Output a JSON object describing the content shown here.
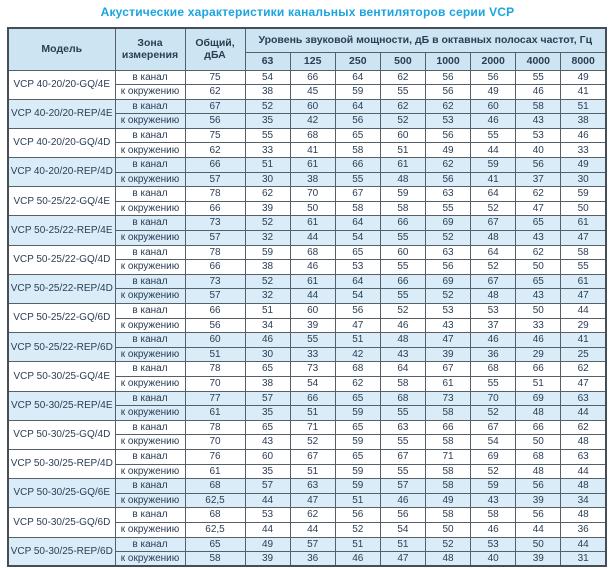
{
  "title": "Акустические характеристики канальных вентиляторов  серии VCP",
  "colors": {
    "title_text": "#1ba4e0",
    "header_bg": "#cde4f2",
    "shaded_row_bg": "#d9ecf7",
    "cell_text": "#2c3e54",
    "border": "#566069"
  },
  "table": {
    "headers": {
      "model": "Модель",
      "zone": "Зона измерения",
      "total": "Общий, дБА",
      "octave": "Уровень звуковой мощности, дБ в октавных полосах частот, Гц",
      "frequencies": [
        "63",
        "125",
        "250",
        "500",
        "1000",
        "2000",
        "4000",
        "8000"
      ]
    },
    "zone_labels": [
      "в канал",
      "к окружению"
    ],
    "rows": [
      {
        "model": "VCP 40-20/20-GQ/4E",
        "shaded": false,
        "in_channel": [
          75,
          54,
          66,
          64,
          62,
          56,
          56,
          55,
          49
        ],
        "to_ambient": [
          62,
          38,
          45,
          59,
          55,
          56,
          49,
          46,
          41
        ]
      },
      {
        "model": "VCP 40-20/20-REP/4E",
        "shaded": true,
        "in_channel": [
          67,
          52,
          60,
          64,
          62,
          62,
          60,
          58,
          51
        ],
        "to_ambient": [
          56,
          35,
          42,
          56,
          52,
          53,
          46,
          43,
          38
        ]
      },
      {
        "model": "VCP 40-20/20-GQ/4D",
        "shaded": false,
        "in_channel": [
          75,
          55,
          68,
          65,
          60,
          56,
          55,
          53,
          46
        ],
        "to_ambient": [
          62,
          33,
          41,
          58,
          51,
          49,
          44,
          40,
          33
        ]
      },
      {
        "model": "VCP 40-20/20-REP/4D",
        "shaded": true,
        "in_channel": [
          66,
          51,
          61,
          66,
          61,
          62,
          59,
          56,
          49
        ],
        "to_ambient": [
          57,
          30,
          38,
          55,
          48,
          56,
          41,
          37,
          30
        ]
      },
      {
        "model": "VCP 50-25/22-GQ/4E",
        "shaded": false,
        "in_channel": [
          78,
          62,
          70,
          67,
          59,
          63,
          64,
          62,
          59
        ],
        "to_ambient": [
          66,
          39,
          50,
          58,
          58,
          55,
          52,
          47,
          50
        ]
      },
      {
        "model": "VCP 50-25/22-REP/4E",
        "shaded": true,
        "in_channel": [
          73,
          52,
          61,
          64,
          66,
          69,
          67,
          65,
          61
        ],
        "to_ambient": [
          57,
          32,
          44,
          54,
          55,
          52,
          48,
          43,
          47
        ]
      },
      {
        "model": "VCP 50-25/22-GQ/4D",
        "shaded": false,
        "in_channel": [
          78,
          59,
          68,
          65,
          60,
          63,
          64,
          62,
          58
        ],
        "to_ambient": [
          66,
          38,
          46,
          53,
          55,
          56,
          52,
          50,
          55
        ]
      },
      {
        "model": "VCP 50-25/22-REP/4D",
        "shaded": true,
        "in_channel": [
          73,
          52,
          61,
          64,
          66,
          69,
          67,
          65,
          61
        ],
        "to_ambient": [
          57,
          32,
          44,
          54,
          55,
          52,
          48,
          43,
          47
        ]
      },
      {
        "model": "VCP 50-25/22-GQ/6D",
        "shaded": false,
        "in_channel": [
          66,
          51,
          60,
          56,
          52,
          53,
          53,
          50,
          44
        ],
        "to_ambient": [
          56,
          34,
          39,
          47,
          46,
          43,
          37,
          33,
          29
        ]
      },
      {
        "model": "VCP 50-25/22-REP/6D",
        "shaded": true,
        "in_channel": [
          60,
          46,
          55,
          51,
          48,
          47,
          46,
          46,
          41
        ],
        "to_ambient": [
          51,
          30,
          33,
          42,
          43,
          39,
          36,
          29,
          25
        ]
      },
      {
        "model": "VCP 50-30/25-GQ/4E",
        "shaded": false,
        "in_channel": [
          78,
          65,
          73,
          68,
          64,
          67,
          68,
          66,
          62
        ],
        "to_ambient": [
          70,
          38,
          54,
          62,
          58,
          61,
          55,
          51,
          47
        ]
      },
      {
        "model": "VCP 50-30/25-REP/4E",
        "shaded": true,
        "in_channel": [
          77,
          57,
          66,
          65,
          68,
          73,
          70,
          69,
          63
        ],
        "to_ambient": [
          61,
          35,
          51,
          59,
          55,
          58,
          52,
          48,
          44
        ]
      },
      {
        "model": "VCP 50-30/25-GQ/4D",
        "shaded": false,
        "in_channel": [
          78,
          65,
          71,
          65,
          63,
          66,
          67,
          66,
          62
        ],
        "to_ambient": [
          70,
          43,
          52,
          59,
          55,
          58,
          54,
          50,
          48
        ]
      },
      {
        "model": "VCP 50-30/25-REP/4D",
        "shaded": false,
        "in_channel": [
          76,
          60,
          67,
          65,
          67,
          71,
          69,
          68,
          63
        ],
        "to_ambient": [
          61,
          35,
          51,
          59,
          55,
          58,
          52,
          48,
          44
        ]
      },
      {
        "model": "VCP 50-30/25-GQ/6E",
        "shaded": true,
        "in_channel": [
          68,
          57,
          63,
          59,
          57,
          58,
          59,
          56,
          48
        ],
        "to_ambient": [
          "62,5",
          44,
          47,
          51,
          46,
          49,
          43,
          39,
          34
        ]
      },
      {
        "model": "VCP 50-30/25-GQ/6D",
        "shaded": false,
        "in_channel": [
          68,
          53,
          62,
          56,
          56,
          58,
          58,
          56,
          48
        ],
        "to_ambient": [
          "62,5",
          44,
          44,
          52,
          54,
          50,
          46,
          44,
          36
        ]
      },
      {
        "model": "VCP 50-30/25-REP/6D",
        "shaded": true,
        "in_channel": [
          65,
          49,
          57,
          51,
          51,
          52,
          53,
          50,
          44
        ],
        "to_ambient": [
          58,
          39,
          36,
          46,
          47,
          48,
          40,
          39,
          31
        ]
      }
    ]
  }
}
